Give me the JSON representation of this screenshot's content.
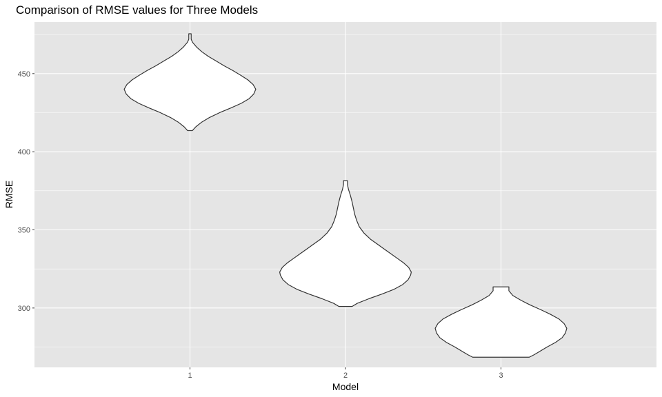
{
  "chart_data": {
    "type": "violin",
    "title": "Comparison of RMSE values for Three Models",
    "xlabel": "Model",
    "ylabel": "RMSE",
    "categories": [
      "1",
      "2",
      "3"
    ],
    "ylim": [
      262,
      483
    ],
    "yticks": [
      300,
      350,
      400,
      450
    ],
    "grid": true,
    "legend": "none",
    "colors": {
      "panel_background": "#e5e5e5",
      "gridline": "#ffffff",
      "violin_fill": "#ffffff",
      "violin_outline": "#333333"
    },
    "series": [
      {
        "category": "1",
        "min": 413.5,
        "max": 475.5,
        "density_profile": [
          [
            413.5,
            0.035
          ],
          [
            416,
            0.09
          ],
          [
            419,
            0.18
          ],
          [
            422,
            0.3
          ],
          [
            425,
            0.45
          ],
          [
            428,
            0.62
          ],
          [
            431,
            0.78
          ],
          [
            434,
            0.9
          ],
          [
            437,
            0.97
          ],
          [
            440,
            1.0
          ],
          [
            443,
            0.96
          ],
          [
            446,
            0.88
          ],
          [
            449,
            0.77
          ],
          [
            452,
            0.65
          ],
          [
            455,
            0.52
          ],
          [
            458,
            0.4
          ],
          [
            461,
            0.28
          ],
          [
            464,
            0.18
          ],
          [
            467,
            0.1
          ],
          [
            470,
            0.04
          ],
          [
            472,
            0.018
          ],
          [
            475.5,
            0.018
          ]
        ]
      },
      {
        "category": "2",
        "min": 301,
        "max": 381.5,
        "density_profile": [
          [
            301,
            0.1
          ],
          [
            303,
            0.18
          ],
          [
            306,
            0.36
          ],
          [
            309,
            0.56
          ],
          [
            312,
            0.74
          ],
          [
            315,
            0.87
          ],
          [
            318,
            0.95
          ],
          [
            321,
            0.99
          ],
          [
            323,
            1.0
          ],
          [
            326,
            0.96
          ],
          [
            329,
            0.88
          ],
          [
            332,
            0.78
          ],
          [
            335,
            0.68
          ],
          [
            338,
            0.58
          ],
          [
            341,
            0.48
          ],
          [
            344,
            0.38
          ],
          [
            348,
            0.28
          ],
          [
            352,
            0.21
          ],
          [
            356,
            0.17
          ],
          [
            360,
            0.14
          ],
          [
            364,
            0.12
          ],
          [
            368,
            0.1
          ],
          [
            372,
            0.075
          ],
          [
            376,
            0.045
          ],
          [
            379,
            0.03
          ],
          [
            381.5,
            0.03
          ]
        ]
      },
      {
        "category": "3",
        "min": 268.5,
        "max": 313.5,
        "density_profile": [
          [
            268.5,
            0.43
          ],
          [
            270,
            0.5
          ],
          [
            272,
            0.58
          ],
          [
            275,
            0.7
          ],
          [
            278,
            0.83
          ],
          [
            281,
            0.93
          ],
          [
            284,
            0.98
          ],
          [
            287,
            1.0
          ],
          [
            290,
            0.96
          ],
          [
            293,
            0.88
          ],
          [
            296,
            0.75
          ],
          [
            299,
            0.6
          ],
          [
            302,
            0.44
          ],
          [
            305,
            0.3
          ],
          [
            308,
            0.18
          ],
          [
            311,
            0.12
          ],
          [
            313.5,
            0.12
          ]
        ]
      }
    ]
  }
}
